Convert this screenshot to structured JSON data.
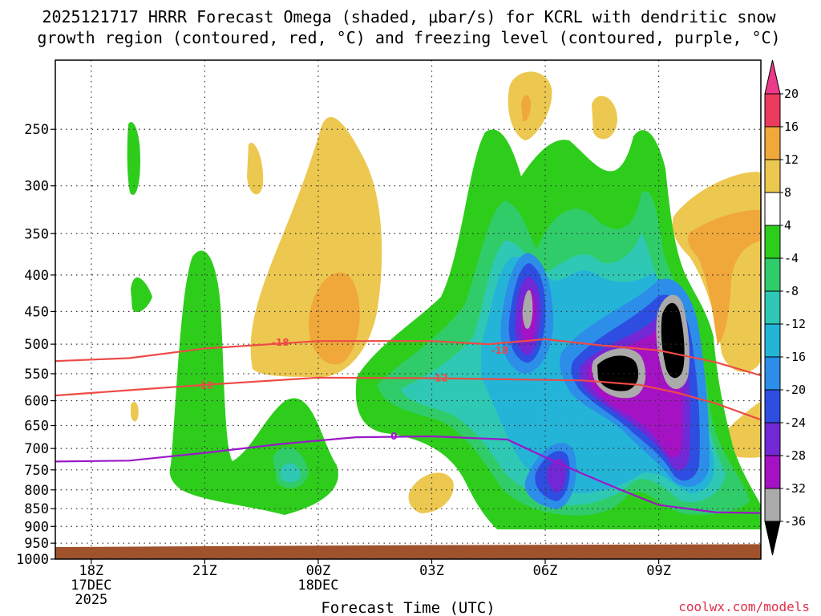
{
  "chart_data": {
    "type": "time-height contour",
    "title_line1": "2025121717 HRRR Forecast Omega (shaded, μbar/s) for KCRL with dendritic snow",
    "title_line2": "growth region (contoured, red, °C) and freezing level (contoured, purple, °C)",
    "xlabel": "Forecast Time (UTC)",
    "credit": "coolwx.com/models",
    "x_ticks": [
      {
        "hour": 0,
        "label": "18Z",
        "sub1": "17DEC",
        "sub2": "2025"
      },
      {
        "hour": 3,
        "label": "21Z",
        "sub1": "",
        "sub2": ""
      },
      {
        "hour": 6,
        "label": "00Z",
        "sub1": "18DEC",
        "sub2": ""
      },
      {
        "hour": 9,
        "label": "03Z",
        "sub1": "",
        "sub2": ""
      },
      {
        "hour": 12,
        "label": "06Z",
        "sub1": "",
        "sub2": ""
      },
      {
        "hour": 15,
        "label": "09Z",
        "sub1": "",
        "sub2": ""
      }
    ],
    "x_range_hours": [
      -0.95,
      17.7
    ],
    "y_ticks_hpa": [
      250,
      300,
      350,
      400,
      450,
      500,
      550,
      600,
      650,
      700,
      750,
      800,
      850,
      900,
      950,
      1000
    ],
    "y_range_hpa": [
      200,
      1000
    ],
    "colorbar": {
      "unit": "μbar/s",
      "labels": [
        "20",
        "16",
        "12",
        "8",
        "4",
        "-4",
        "-8",
        "-12",
        "-16",
        "-20",
        "-24",
        "-28",
        "-32",
        "-36"
      ],
      "colors": [
        "#ec3a5e",
        "#f0a83a",
        "#ecc850",
        "#ffffff",
        "#2ecd1c",
        "#30cc6a",
        "#2fc8b4",
        "#24b4d8",
        "#2c8ee8",
        "#2e4ee2",
        "#7228d4",
        "#a512c4",
        "#aaaaaa",
        "#000000"
      ]
    },
    "contours": [
      {
        "label": "-18",
        "color": "#ee4a46",
        "meaning": "dendritic growth top",
        "points": [
          [
            -0.95,
            528
          ],
          [
            1.0,
            523
          ],
          [
            3.0,
            507
          ],
          [
            6.0,
            495
          ],
          [
            9.0,
            495
          ],
          [
            10.5,
            500
          ],
          [
            12.0,
            492
          ],
          [
            13.5,
            502
          ],
          [
            15.0,
            510
          ],
          [
            16.5,
            530
          ],
          [
            17.7,
            553
          ]
        ]
      },
      {
        "label": "-12",
        "color": "#ee4a46",
        "meaning": "dendritic growth bottom",
        "points": [
          [
            -0.95,
            590
          ],
          [
            1.0,
            580
          ],
          [
            3.0,
            570
          ],
          [
            6.0,
            557
          ],
          [
            9.0,
            558
          ],
          [
            11.0,
            560
          ],
          [
            13.0,
            562
          ],
          [
            14.5,
            570
          ],
          [
            15.5,
            585
          ],
          [
            16.5,
            605
          ],
          [
            17.7,
            638
          ]
        ]
      },
      {
        "label": "0",
        "color": "#9a18c8",
        "meaning": "freezing level",
        "points": [
          [
            -0.95,
            730
          ],
          [
            1.0,
            728
          ],
          [
            3.0,
            710
          ],
          [
            5.0,
            690
          ],
          [
            7.0,
            675
          ],
          [
            9.0,
            673
          ],
          [
            11.0,
            680
          ],
          [
            12.0,
            720
          ],
          [
            13.0,
            760
          ],
          [
            14.0,
            800
          ],
          [
            15.0,
            840
          ],
          [
            16.5,
            860
          ],
          [
            17.7,
            862
          ]
        ]
      }
    ],
    "contour_label_positions": [
      {
        "label": "-18",
        "x": 5.0,
        "y": 497
      },
      {
        "label": "-18",
        "x": 10.8,
        "y": 510
      },
      {
        "label": "-12",
        "x": 3.0,
        "y": 571
      },
      {
        "label": "-12",
        "x": 9.2,
        "y": 558
      },
      {
        "label": "0",
        "x": 8.0,
        "y": 673
      }
    ],
    "terrain_color": "#a0522d",
    "surface_pressure_hpa": [
      [
        -0.95,
        962
      ],
      [
        9.0,
        956
      ],
      [
        17.7,
        953
      ]
    ]
  }
}
